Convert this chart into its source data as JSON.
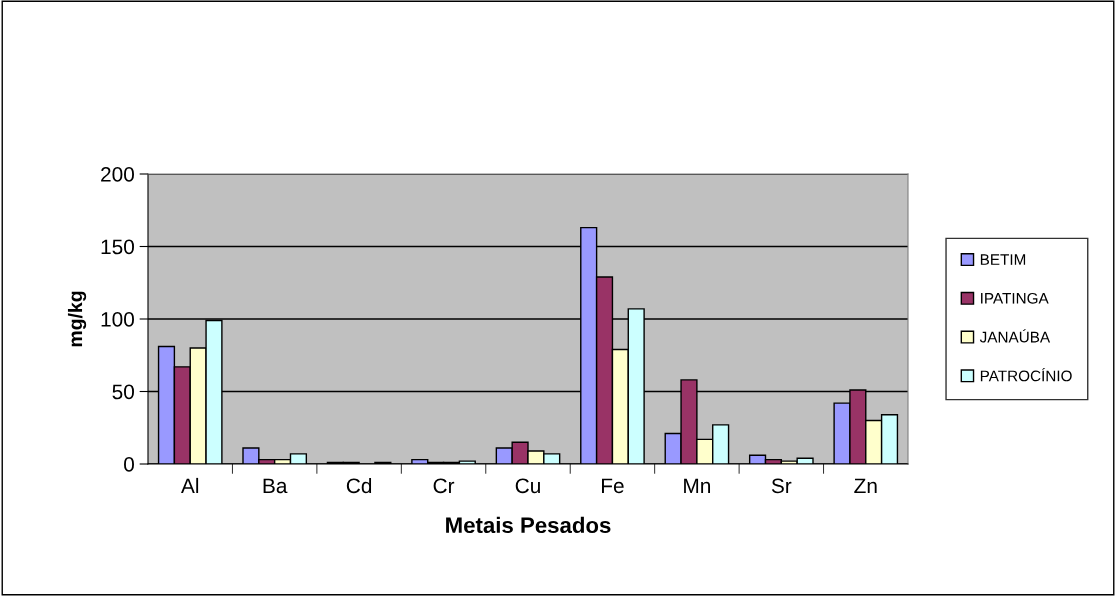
{
  "chart_data": {
    "type": "bar",
    "xlabel": "Metais Pesados",
    "ylabel": "mg/kg",
    "categories": [
      "Al",
      "Ba",
      "Cd",
      "Cr",
      "Cu",
      "Fe",
      "Mn",
      "Sr",
      "Zn"
    ],
    "series": [
      {
        "name": "BETIM",
        "color": "#9999ff",
        "values": [
          81,
          11,
          1,
          3,
          11,
          163,
          21,
          6,
          42
        ]
      },
      {
        "name": "IPATINGA",
        "color": "#993366",
        "values": [
          67,
          3,
          1,
          1,
          15,
          129,
          58,
          3,
          51
        ]
      },
      {
        "name": "JANAÚBA",
        "color": "#ffffcc",
        "values": [
          80,
          3,
          null,
          1,
          9,
          79,
          17,
          2,
          30
        ]
      },
      {
        "name": "PATROCÍNIO",
        "color": "#ccffff",
        "values": [
          99,
          7,
          1,
          2,
          7,
          107,
          27,
          4,
          34
        ]
      }
    ],
    "ylim": [
      0,
      200
    ],
    "yticks": [
      0,
      50,
      100,
      150,
      200
    ],
    "grid": "y",
    "legend": "right"
  }
}
